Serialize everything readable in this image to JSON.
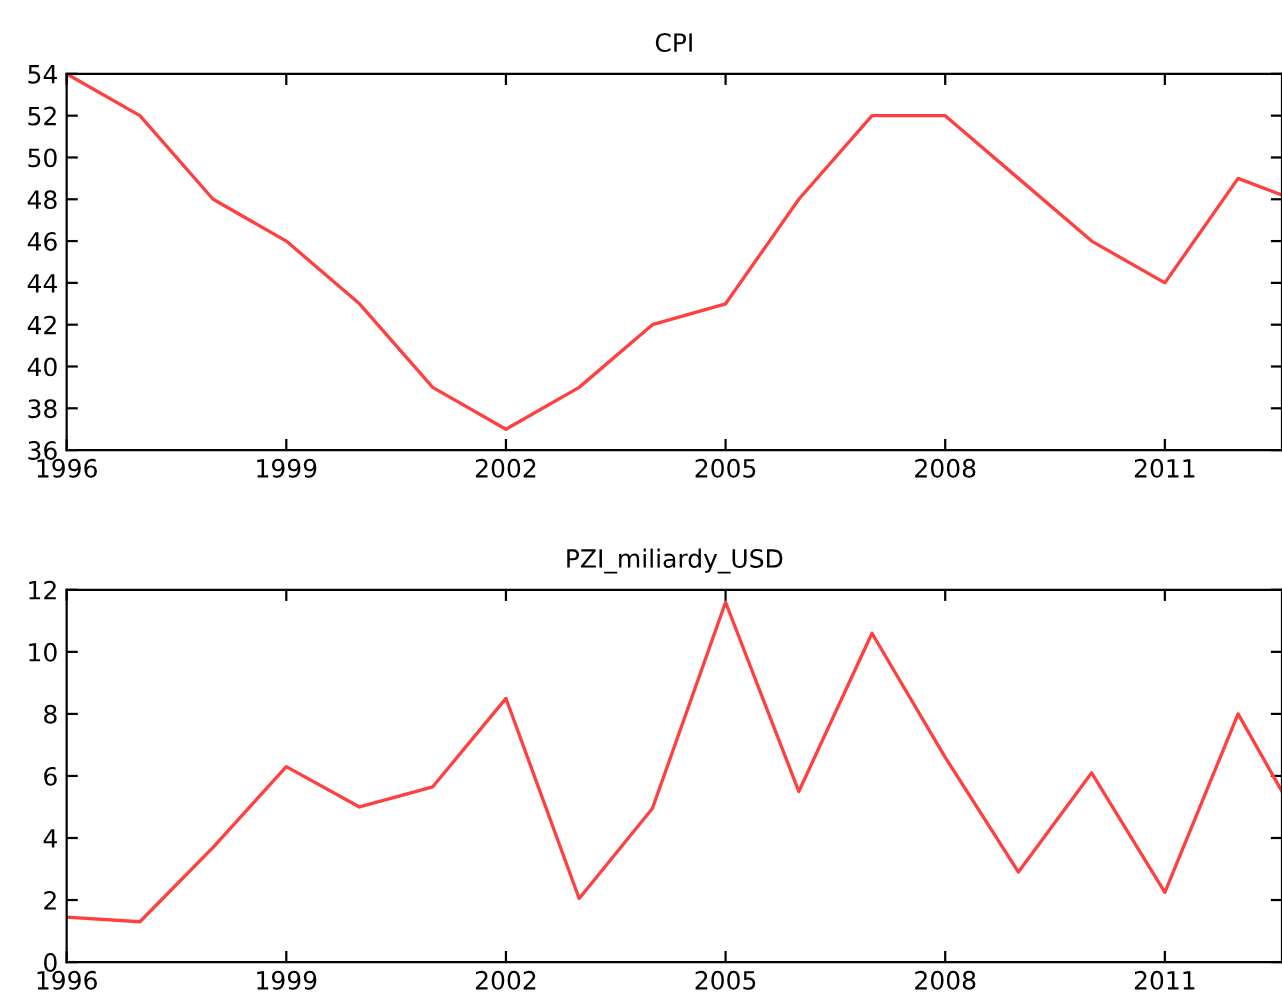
{
  "chart_data": [
    {
      "type": "line",
      "title": "CPI",
      "x": [
        1996,
        1997,
        1998,
        1999,
        2000,
        2001,
        2002,
        2003,
        2004,
        2005,
        2006,
        2007,
        2008,
        2009,
        2010,
        2011,
        2012,
        2012.6
      ],
      "series": [
        {
          "color": "#ff4040",
          "values": [
            54,
            52,
            48,
            46,
            43,
            39,
            37,
            39,
            42,
            43,
            48,
            52,
            52,
            49,
            46,
            44,
            49,
            48.2
          ]
        }
      ],
      "xlim": [
        1996,
        2012.6
      ],
      "xticks": [
        1996,
        1999,
        2002,
        2005,
        2008,
        2011
      ],
      "ylim": [
        36,
        54
      ],
      "yticks": [
        36,
        38,
        40,
        42,
        44,
        46,
        48,
        50,
        52,
        54
      ],
      "grid": false,
      "legend": false
    },
    {
      "type": "line",
      "title": "PZI_miliardy_USD",
      "x": [
        1996,
        1997,
        1998,
        1999,
        2000,
        2001,
        2002,
        2003,
        2004,
        2005,
        2006,
        2007,
        2008,
        2009,
        2010,
        2011,
        2012,
        2012.6
      ],
      "series": [
        {
          "color": "#ff4040",
          "values": [
            1.45,
            1.3,
            3.7,
            6.3,
            5.0,
            5.65,
            8.5,
            2.05,
            4.95,
            11.6,
            5.5,
            10.6,
            6.6,
            2.9,
            6.1,
            2.25,
            8.0,
            5.5
          ]
        }
      ],
      "xlim": [
        1996,
        2012.6
      ],
      "xticks": [
        1996,
        1999,
        2002,
        2005,
        2008,
        2011
      ],
      "ylim": [
        0,
        12
      ],
      "yticks": [
        0,
        2,
        4,
        6,
        8,
        10,
        12
      ],
      "grid": false,
      "legend": false
    }
  ]
}
